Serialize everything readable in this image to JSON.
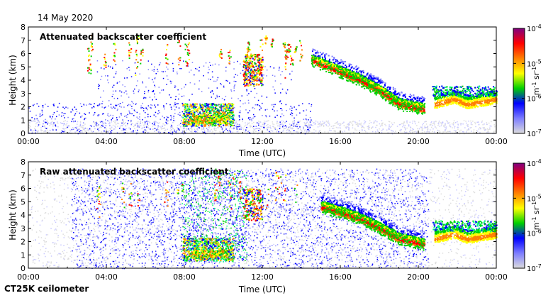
{
  "date": "14 May 2020",
  "footer": "CT25K ceilometer",
  "colors": {
    "colormap": [
      "#dcdcdc",
      "#7d7dff",
      "#0000ff",
      "#00d000",
      "#ffff00",
      "#ff8000",
      "#ff0000",
      "#800080"
    ],
    "cloud_peak": "#ff6000"
  },
  "chart_data": [
    {
      "type": "heatmap",
      "title": "Attenuated backscatter coefficient",
      "xlabel": "Time (UTC)",
      "ylabel": "Height (km)",
      "xlim": [
        0,
        24
      ],
      "ylim": [
        0,
        8
      ],
      "x_ticks": [
        "00:00",
        "04:00",
        "08:00",
        "12:00",
        "16:00",
        "20:00",
        "00:00"
      ],
      "y_ticks": [
        "0",
        "1",
        "2",
        "3",
        "4",
        "5",
        "6",
        "7",
        "8"
      ],
      "colorbar": {
        "scale": "log",
        "range": [
          1e-07,
          0.0001
        ],
        "ticks": [
          "10",
          "10",
          "10",
          "10"
        ],
        "exponents": [
          "-7",
          "-6",
          "-5",
          "-4"
        ],
        "unit": "m",
        "unit_exp1": "-1",
        "unit_sr": " sr",
        "unit_exp2": "-1"
      },
      "features": [
        {
          "name": "boundary-layer-aerosol",
          "t_start": 7.9,
          "t_end": 10.5,
          "z_bottom": 0.6,
          "z_top": 2.4
        },
        {
          "name": "mid-cloud",
          "t_start": 11.0,
          "t_end": 12.0,
          "z_bottom": 3.6,
          "z_top": 6.0
        },
        {
          "name": "descending-cloud-layer",
          "points": [
            [
              14.5,
              5.5
            ],
            [
              16,
              4.6
            ],
            [
              17,
              4.0
            ],
            [
              18,
              3.2
            ],
            [
              19,
              2.2
            ],
            [
              20.3,
              1.8
            ]
          ]
        },
        {
          "name": "evening-layer",
          "t_start": 20.8,
          "t_end": 24,
          "z_bottom": 1.5,
          "z_top": 3.2
        }
      ]
    },
    {
      "type": "heatmap",
      "title": "Raw attenuated backscatter coefficient",
      "xlabel": "Time (UTC)",
      "ylabel": "Height (km)",
      "xlim": [
        0,
        24
      ],
      "ylim": [
        0,
        8
      ],
      "x_ticks": [
        "00:00",
        "04:00",
        "08:00",
        "12:00",
        "16:00",
        "20:00",
        "00:00"
      ],
      "y_ticks": [
        "0",
        "1",
        "2",
        "3",
        "4",
        "5",
        "6",
        "7",
        "8"
      ],
      "colorbar": {
        "scale": "log",
        "range": [
          1e-07,
          0.0001
        ],
        "ticks": [
          "10",
          "10",
          "10",
          "10"
        ],
        "exponents": [
          "-7",
          "-6",
          "-5",
          "-4"
        ],
        "unit": "m",
        "unit_exp1": "-1",
        "unit_sr": " sr",
        "unit_exp2": "-1"
      },
      "features": [
        {
          "name": "noise-background",
          "t_start": 0,
          "t_end": 24,
          "z_bottom": 0,
          "z_top": 7.5
        },
        {
          "name": "boundary-layer-aerosol",
          "t_start": 7.9,
          "t_end": 10.5,
          "z_bottom": 0.6,
          "z_top": 2.4
        },
        {
          "name": "descending-cloud-layer",
          "points": [
            [
              15,
              4.6
            ],
            [
              16,
              4.2
            ],
            [
              17,
              3.7
            ],
            [
              18,
              3.0
            ],
            [
              19,
              2.2
            ],
            [
              20.3,
              1.8
            ]
          ]
        },
        {
          "name": "evening-layer",
          "t_start": 20.8,
          "t_end": 24,
          "z_bottom": 1.5,
          "z_top": 3.2
        }
      ]
    }
  ]
}
